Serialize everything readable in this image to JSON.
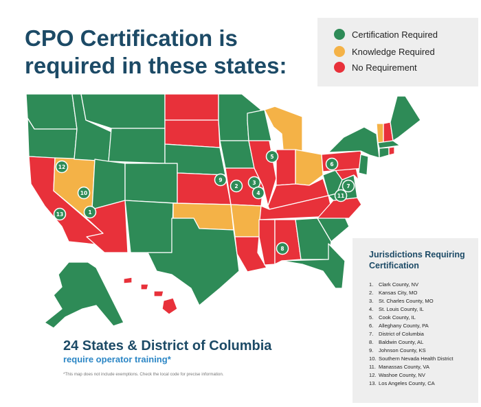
{
  "title": "CPO Certification is required in these states:",
  "legend": [
    {
      "label": "Certification Required",
      "color": "#2e8b57"
    },
    {
      "label": "Knowledge Required",
      "color": "#f4b247"
    },
    {
      "label": "No Requirement",
      "color": "#e8313a"
    }
  ],
  "colors": {
    "required": "#2e8b57",
    "knowledge": "#f4b247",
    "none": "#e8313a",
    "heading": "#1c4a66",
    "subheading": "#2b86c5"
  },
  "jurisdictions": {
    "title": "Jurisdictions Requiring Certification",
    "items": [
      {
        "num": "1.",
        "name": "Clark County, NV"
      },
      {
        "num": "2.",
        "name": "Kansas City, MO"
      },
      {
        "num": "3.",
        "name": "St. Charles County, MO"
      },
      {
        "num": "4.",
        "name": "St. Louis County, IL"
      },
      {
        "num": "5.",
        "name": "Cook County, IL"
      },
      {
        "num": "6.",
        "name": "Alleghany County, PA"
      },
      {
        "num": "7.",
        "name": "District of Columbia"
      },
      {
        "num": "8.",
        "name": "Baldwin County, AL"
      },
      {
        "num": "9.",
        "name": "Johnson County, KS"
      },
      {
        "num": "10.",
        "name": "Southern Nevada Health District"
      },
      {
        "num": "11.",
        "name": "Manassas County, VA"
      },
      {
        "num": "12.",
        "name": "Washoe County, NV"
      },
      {
        "num": "13.",
        "name": "Los Angeles County, CA"
      }
    ]
  },
  "bottom": {
    "headline": "24 States & District of Columbia",
    "subline": "require operator training*",
    "footnote": "*This map does not include exemptions. Check the local code for precise information."
  },
  "map_markers": [
    "1",
    "2",
    "3",
    "4",
    "5",
    "6",
    "7",
    "8",
    "9",
    "10",
    "11",
    "12",
    "13"
  ]
}
